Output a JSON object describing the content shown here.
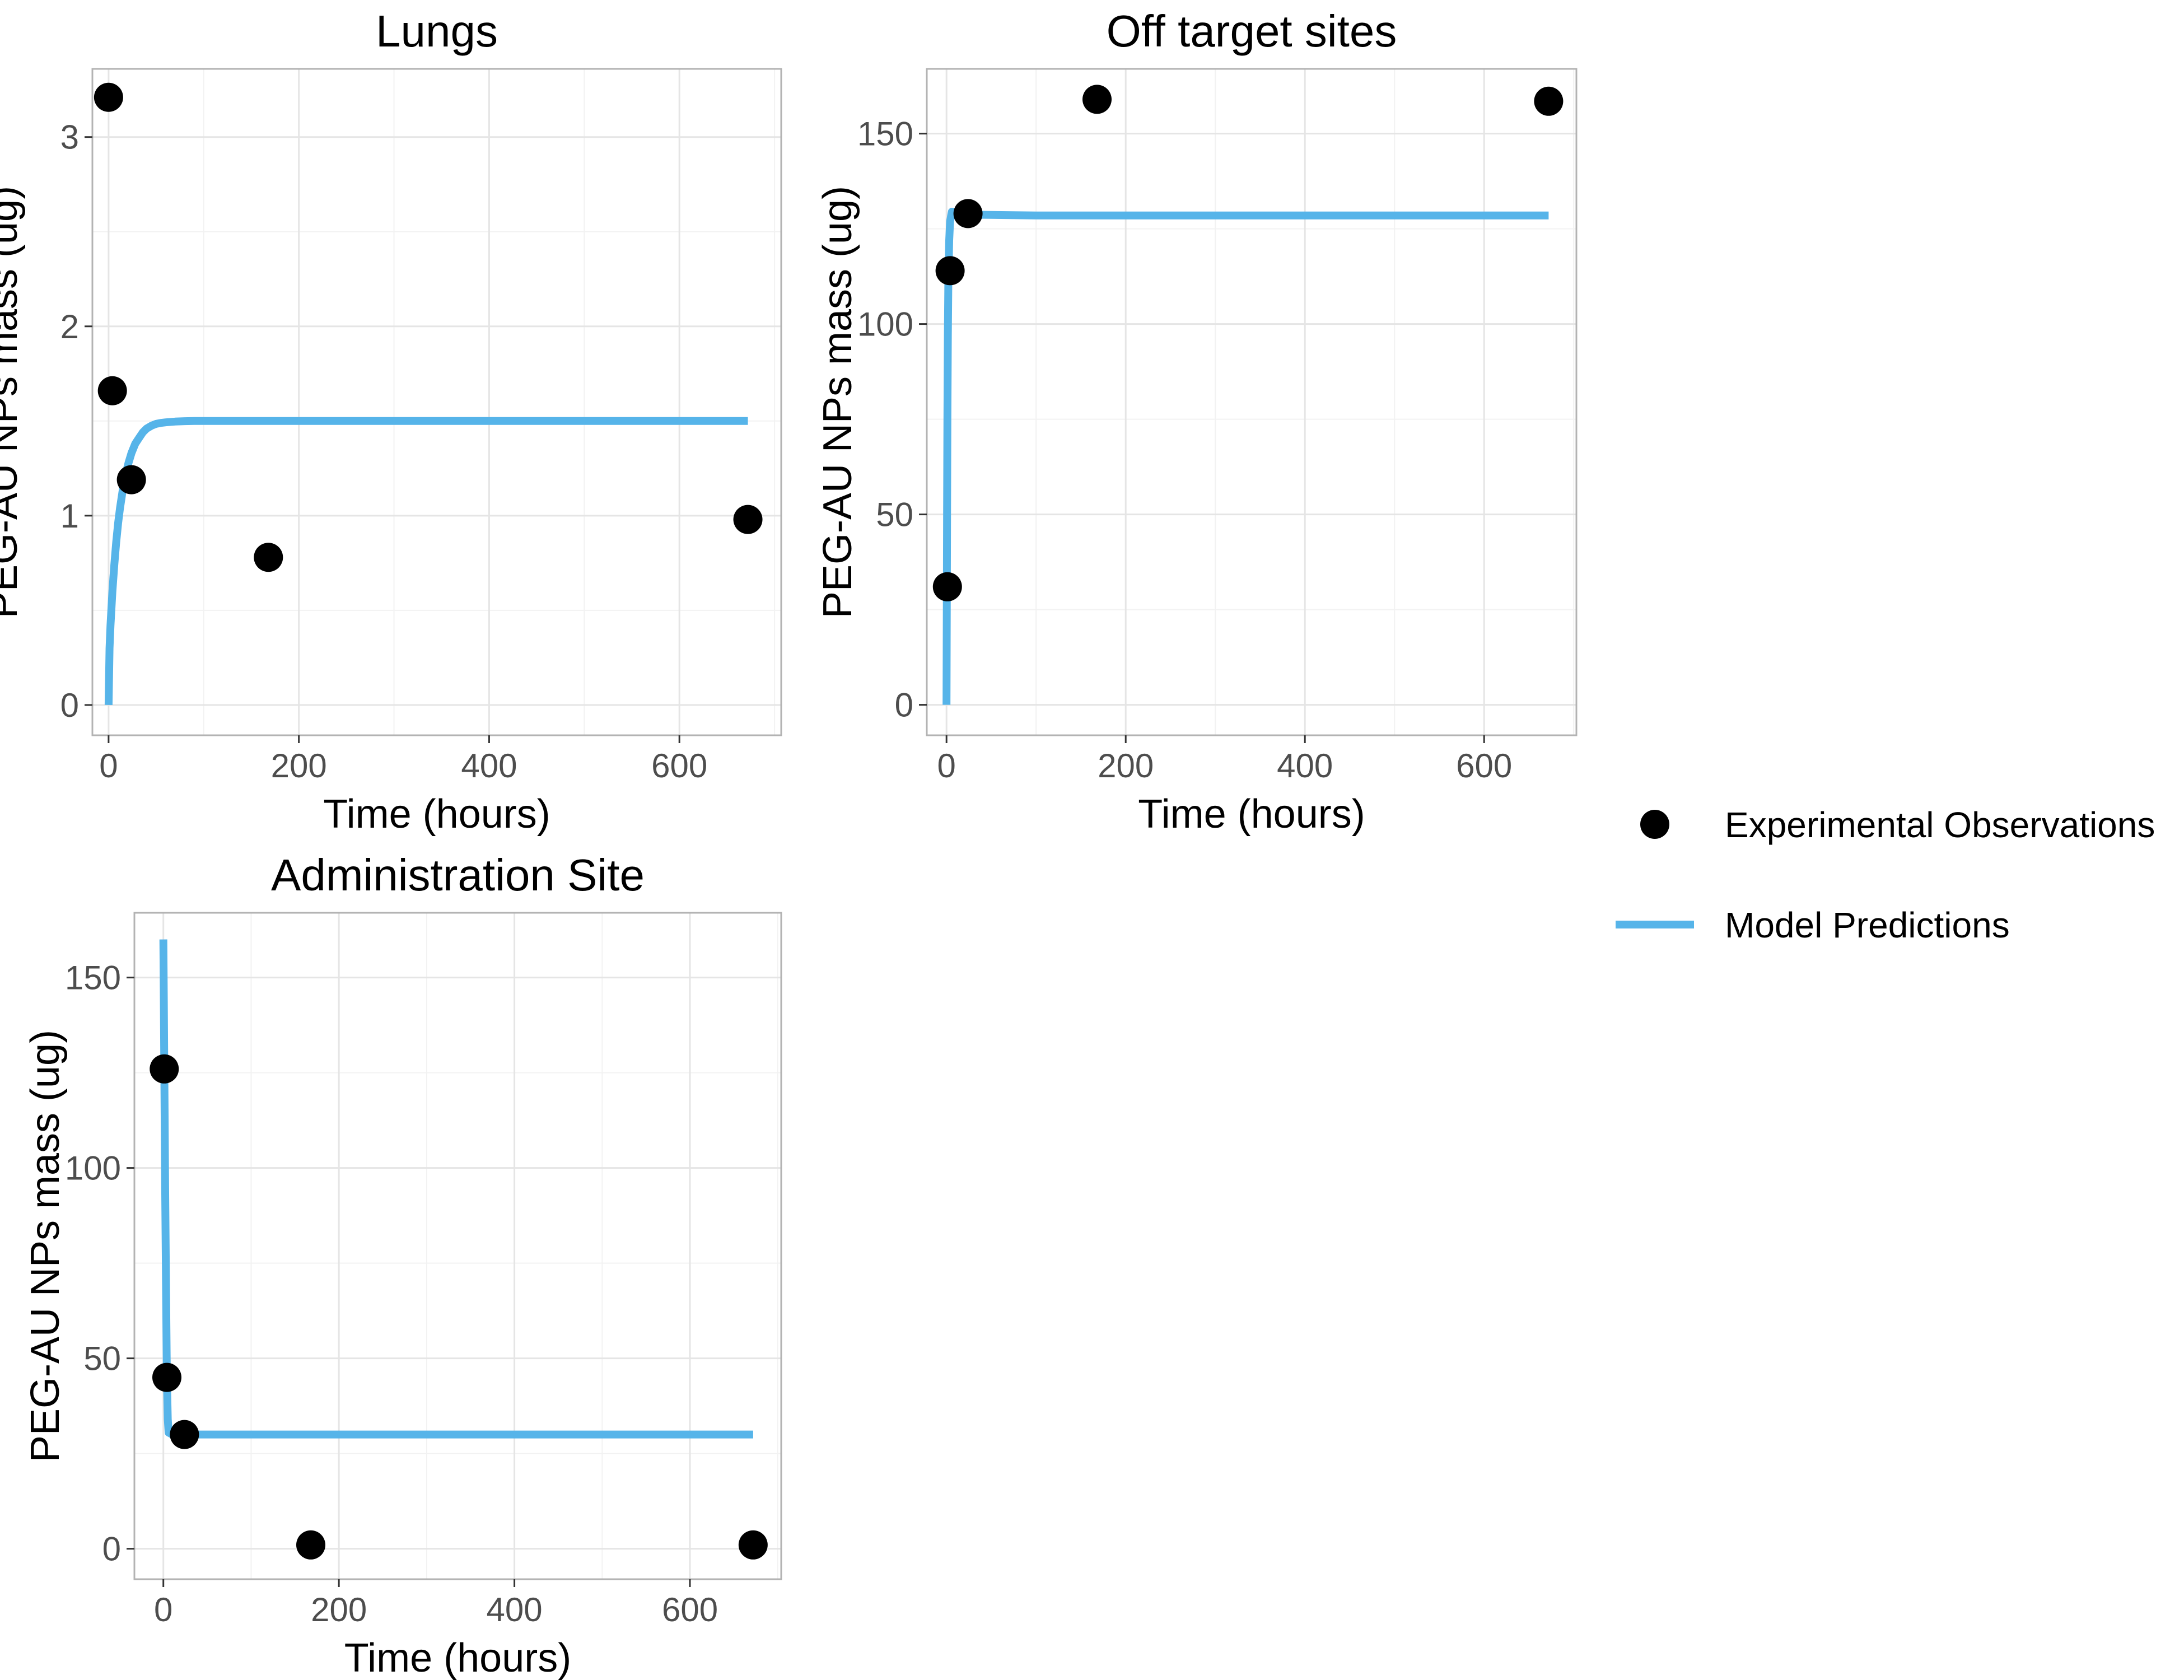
{
  "chart_data": [
    {
      "type": "line",
      "title": "Lungs",
      "xlabel": "Time (hours)",
      "ylabel": "PEG-AU NPs mass (ug)",
      "xlim": [
        -17,
        707
      ],
      "ylim": [
        -0.16,
        3.36
      ],
      "xticks": [
        0,
        200,
        400,
        600
      ],
      "yticks": [
        0,
        1,
        2,
        3
      ],
      "grid": true,
      "observations": {
        "x": [
          0,
          4,
          24,
          168,
          672
        ],
        "y": [
          3.21,
          1.66,
          1.19,
          0.78,
          0.98
        ]
      },
      "predictions": {
        "x": [
          0,
          1,
          2,
          4,
          6,
          8,
          10,
          12,
          15,
          18,
          21,
          24,
          28,
          32,
          36,
          40,
          45,
          50,
          55,
          60,
          70,
          80,
          90,
          100,
          120,
          150,
          200,
          300,
          400,
          500,
          600,
          672
        ],
        "y": [
          0.0,
          0.3,
          0.42,
          0.6,
          0.74,
          0.86,
          0.96,
          1.04,
          1.14,
          1.22,
          1.28,
          1.33,
          1.38,
          1.41,
          1.44,
          1.46,
          1.475,
          1.485,
          1.49,
          1.493,
          1.497,
          1.499,
          1.5,
          1.5,
          1.5,
          1.5,
          1.5,
          1.5,
          1.5,
          1.5,
          1.5,
          1.5
        ]
      }
    },
    {
      "type": "line",
      "title": "Off target sites",
      "xlabel": "Time (hours)",
      "ylabel": "PEG-AU NPs mass (ug)",
      "xlim": [
        -22,
        703
      ],
      "ylim": [
        -8,
        167
      ],
      "xticks": [
        0,
        200,
        400,
        600
      ],
      "yticks": [
        0,
        50,
        100,
        150
      ],
      "grid": true,
      "observations": {
        "x": [
          1,
          4,
          24,
          168,
          672
        ],
        "y": [
          31,
          114,
          129,
          159,
          158.5
        ]
      },
      "predictions": {
        "x": [
          0,
          0.3,
          0.6,
          1,
          1.5,
          2,
          3,
          4,
          6,
          10,
          30,
          100,
          300,
          672
        ],
        "y": [
          0,
          25,
          50,
          75,
          97,
          110,
          122,
          127,
          129.5,
          129.3,
          128.7,
          128.5,
          128.5,
          128.5
        ]
      }
    },
    {
      "type": "line",
      "title": "Administration Site",
      "xlabel": "Time (hours)",
      "ylabel": "PEG-AU NPs mass (ug)",
      "xlim": [
        -33,
        704
      ],
      "ylim": [
        -8,
        167
      ],
      "xticks": [
        0,
        200,
        400,
        600
      ],
      "yticks": [
        0,
        50,
        100,
        150
      ],
      "grid": true,
      "observations": {
        "x": [
          1,
          4,
          24,
          168,
          672
        ],
        "y": [
          126,
          45,
          30,
          1,
          1
        ]
      },
      "predictions": {
        "x": [
          0,
          0.5,
          1,
          2,
          3,
          4,
          5,
          6,
          10,
          30,
          100,
          300,
          672
        ],
        "y": [
          160,
          145,
          128,
          95,
          70,
          45,
          34,
          30.5,
          30,
          30,
          30,
          30,
          30
        ]
      }
    }
  ],
  "legend": {
    "placement": "right",
    "observations_label": "Experimental Observations",
    "predictions_label": "Model Predictions"
  },
  "colors": {
    "observations": "#000000",
    "predictions": "#56b4e9"
  }
}
